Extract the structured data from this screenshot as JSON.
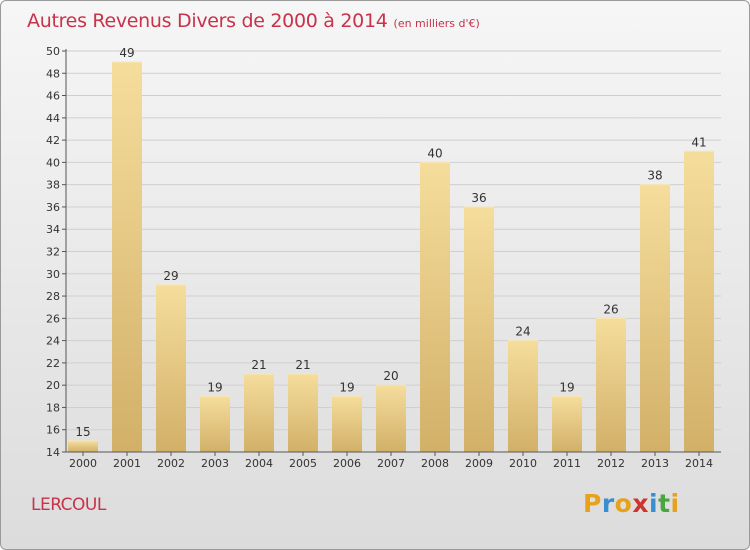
{
  "header": {
    "title": "Autres Revenus Divers de 2000 à 2014",
    "unit": "(en milliers d'€)"
  },
  "commune": "LERCOUL",
  "logo": {
    "letters": [
      "P",
      "r",
      "o",
      "x",
      "i",
      "t",
      "i"
    ],
    "colors": [
      "#e8a21a",
      "#3a8ed0",
      "#e8a21a",
      "#d0332c",
      "#3a8ed0",
      "#4aa640",
      "#e8a21a"
    ]
  },
  "colors": {
    "bar_light": "#f5dd9c",
    "bar_dark": "#d2b068",
    "text_accent": "#c8324a"
  },
  "chart_data": {
    "type": "bar",
    "title": "Autres Revenus Divers de 2000 à 2014",
    "subtitle": "(en milliers d'€)",
    "xlabel": "",
    "ylabel": "",
    "categories": [
      "2000",
      "2001",
      "2002",
      "2003",
      "2004",
      "2005",
      "2006",
      "2007",
      "2008",
      "2009",
      "2010",
      "2011",
      "2012",
      "2013",
      "2014"
    ],
    "values": [
      15,
      49,
      29,
      19,
      21,
      21,
      19,
      20,
      40,
      36,
      24,
      19,
      26,
      38,
      41
    ],
    "ylim": [
      14,
      50
    ],
    "yticks": [
      14,
      16,
      18,
      20,
      22,
      24,
      26,
      28,
      30,
      32,
      34,
      36,
      38,
      40,
      42,
      44,
      46,
      48,
      50
    ],
    "grid": true,
    "legend": "none"
  }
}
